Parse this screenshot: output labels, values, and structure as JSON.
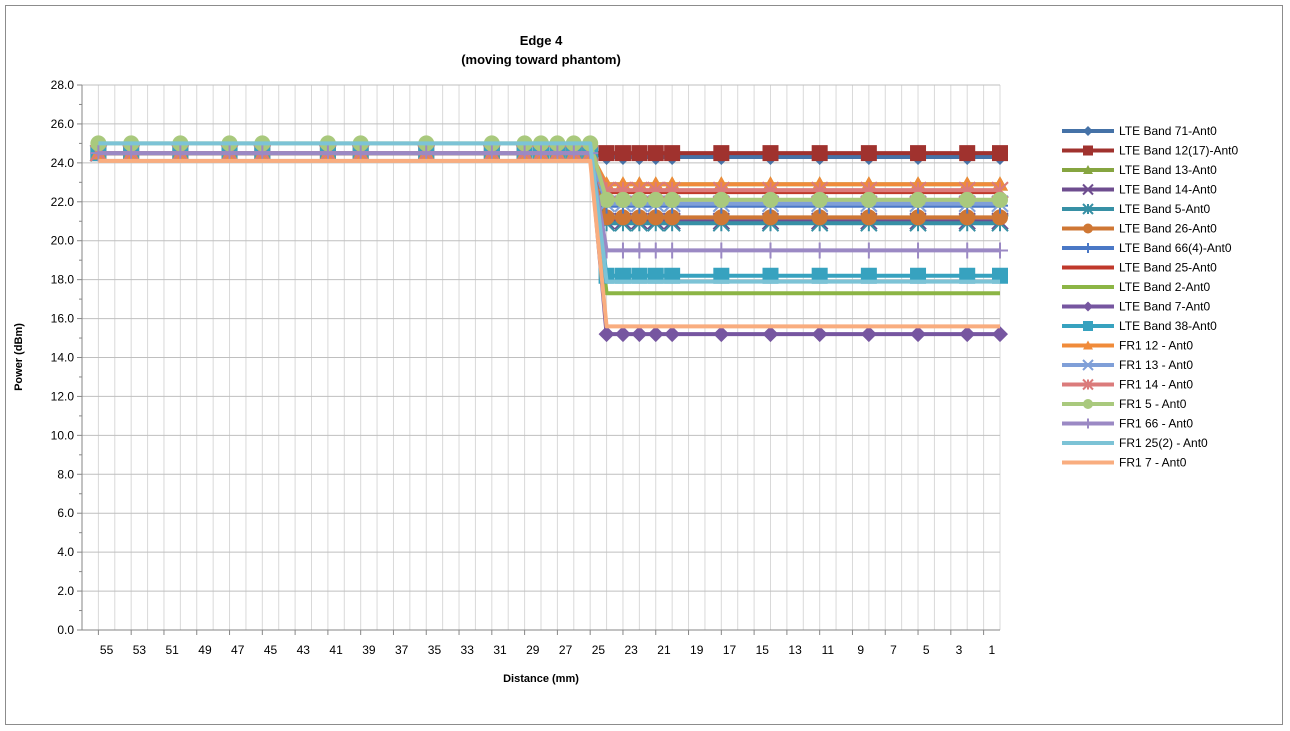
{
  "chart_data": {
    "type": "line",
    "title": "Edge 4",
    "subtitle": "(moving toward phantom)",
    "xlabel": "Distance (mm)",
    "ylabel": "Power (dBm)",
    "ylim": [
      0,
      28
    ],
    "yticks": [
      "0.0",
      "2.0",
      "4.0",
      "6.0",
      "8.0",
      "10.0",
      "12.0",
      "14.0",
      "16.0",
      "18.0",
      "20.0",
      "22.0",
      "24.0",
      "26.0",
      "28.0"
    ],
    "x_tick_labels": [
      "55",
      "53",
      "51",
      "49",
      "47",
      "45",
      "43",
      "41",
      "39",
      "37",
      "35",
      "33",
      "31",
      "29",
      "27",
      "25",
      "23",
      "21",
      "19",
      "17",
      "15",
      "13",
      "11",
      "9",
      "7",
      "5",
      "3",
      "1"
    ],
    "x_reversed": true,
    "grid": true,
    "legend_position": "right",
    "x": [
      55,
      53,
      50,
      47,
      45,
      41,
      39,
      35,
      31,
      29,
      28,
      27,
      26,
      25,
      24,
      23,
      22,
      21,
      20,
      17,
      14,
      11,
      8,
      5,
      2,
      0
    ],
    "series": [
      {
        "name": "LTE Band 71-Ant0",
        "color": "#4572a7",
        "marker": "diamond",
        "high": 24.5,
        "low": 24.3
      },
      {
        "name": "LTE Band 12(17)-Ant0",
        "color": "#a0322e",
        "marker": "square",
        "high": 24.5,
        "low": 24.5
      },
      {
        "name": "LTE Band 13-Ant0",
        "color": "#86a540",
        "marker": "triangle",
        "high": 24.5,
        "low": 22.9
      },
      {
        "name": "LTE Band 14-Ant0",
        "color": "#6e4d8f",
        "marker": "x",
        "high": 24.5,
        "low": 21.0
      },
      {
        "name": "LTE Band 5-Ant0",
        "color": "#3790a5",
        "marker": "star",
        "high": 24.5,
        "low": 20.9
      },
      {
        "name": "LTE Band 26-Ant0",
        "color": "#cf7734",
        "marker": "circle",
        "high": 24.5,
        "low": 21.2
      },
      {
        "name": "LTE Band 66(4)-Ant0",
        "color": "#4a78c6",
        "marker": "plus",
        "high": 24.5,
        "low": 21.8
      },
      {
        "name": "LTE Band 25-Ant0",
        "color": "#c0392b",
        "marker": "none",
        "high": 24.5,
        "low": 22.5
      },
      {
        "name": "LTE Band 2-Ant0",
        "color": "#8cb545",
        "marker": "none",
        "high": 24.5,
        "low": 17.3
      },
      {
        "name": "LTE Band 7-Ant0",
        "color": "#7656a0",
        "marker": "diamond",
        "high": 24.5,
        "low": 15.2
      },
      {
        "name": "LTE Band 38-Ant0",
        "color": "#37a2bf",
        "marker": "square",
        "high": 24.5,
        "low": 18.2
      },
      {
        "name": "FR1 12 - Ant0",
        "color": "#f08b3a",
        "marker": "triangle",
        "high": 24.5,
        "low": 22.9
      },
      {
        "name": "FR1 13 - Ant0",
        "color": "#7f9fd8",
        "marker": "x",
        "high": 24.5,
        "low": 21.9
      },
      {
        "name": "FR1 14 - Ant0",
        "color": "#db7b7b",
        "marker": "star",
        "high": 24.5,
        "low": 22.6
      },
      {
        "name": "FR1 5 - Ant0",
        "color": "#a9c97d",
        "marker": "circle",
        "high": 25.0,
        "low": 22.1
      },
      {
        "name": "FR1 66 - Ant0",
        "color": "#9b89c4",
        "marker": "plus",
        "high": 24.5,
        "low": 19.5
      },
      {
        "name": "FR1 25(2) - Ant0",
        "color": "#7cc3d6",
        "marker": "none",
        "high": 25.0,
        "low": 17.9
      },
      {
        "name": "FR1 7 - Ant0",
        "color": "#f9ad7f",
        "marker": "none",
        "high": 24.1,
        "low": 15.6
      }
    ]
  }
}
